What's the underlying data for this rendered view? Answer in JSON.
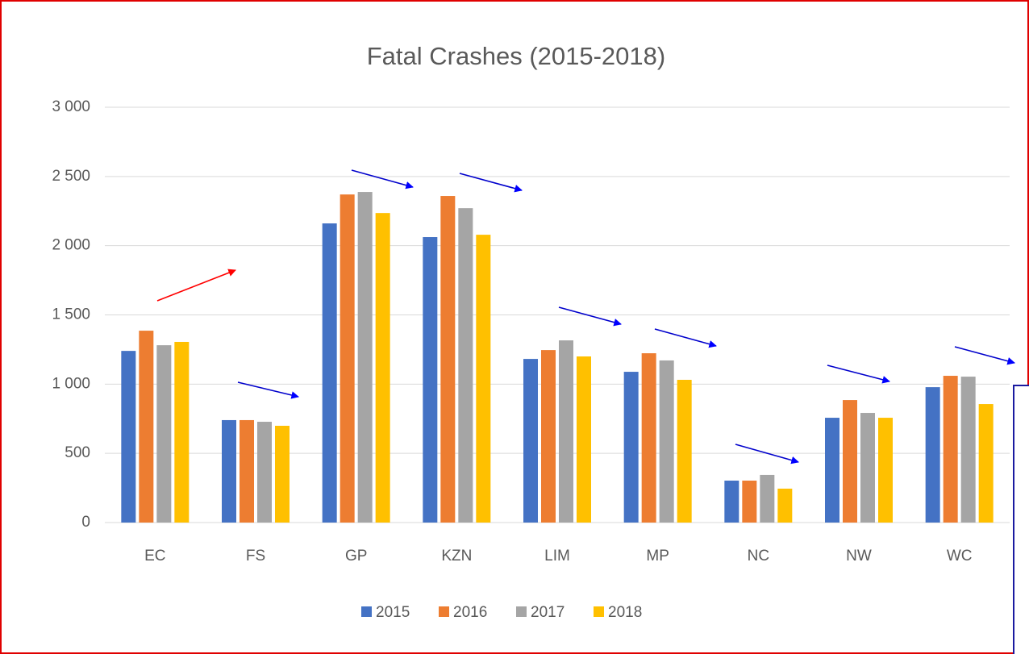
{
  "chart_data": {
    "type": "bar",
    "title": "Fatal Crashes (2015-2018)",
    "categories": [
      "EC",
      "FS",
      "GP",
      "KZN",
      "LIM",
      "MP",
      "NC",
      "NW",
      "WC"
    ],
    "series": [
      {
        "name": "2015",
        "color": "#4472c4",
        "values": [
          1240,
          740,
          2161,
          2062,
          1182,
          1089,
          303,
          757,
          978
        ]
      },
      {
        "name": "2016",
        "color": "#ed7d31",
        "values": [
          1386,
          740,
          2370,
          2359,
          1246,
          1223,
          303,
          885,
          1060
        ]
      },
      {
        "name": "2017",
        "color": "#a5a5a5",
        "values": [
          1281,
          728,
          2388,
          2271,
          1316,
          1171,
          344,
          792,
          1054
        ]
      },
      {
        "name": "2018",
        "color": "#ffc000",
        "values": [
          1305,
          699,
          2236,
          2079,
          1200,
          1031,
          245,
          757,
          856
        ]
      }
    ],
    "ylim": [
      0,
      3000
    ],
    "yticks": [
      0,
      500,
      {
        "value": 1000,
        "label": "1 000"
      },
      {
        "value": 1500,
        "label": "1 500"
      },
      {
        "value": 2000,
        "label": "2 000"
      },
      {
        "value": 2500,
        "label": "2 500"
      },
      {
        "value": 3000,
        "label": "3 000"
      }
    ],
    "grid": true,
    "legend": "bottom"
  }
}
